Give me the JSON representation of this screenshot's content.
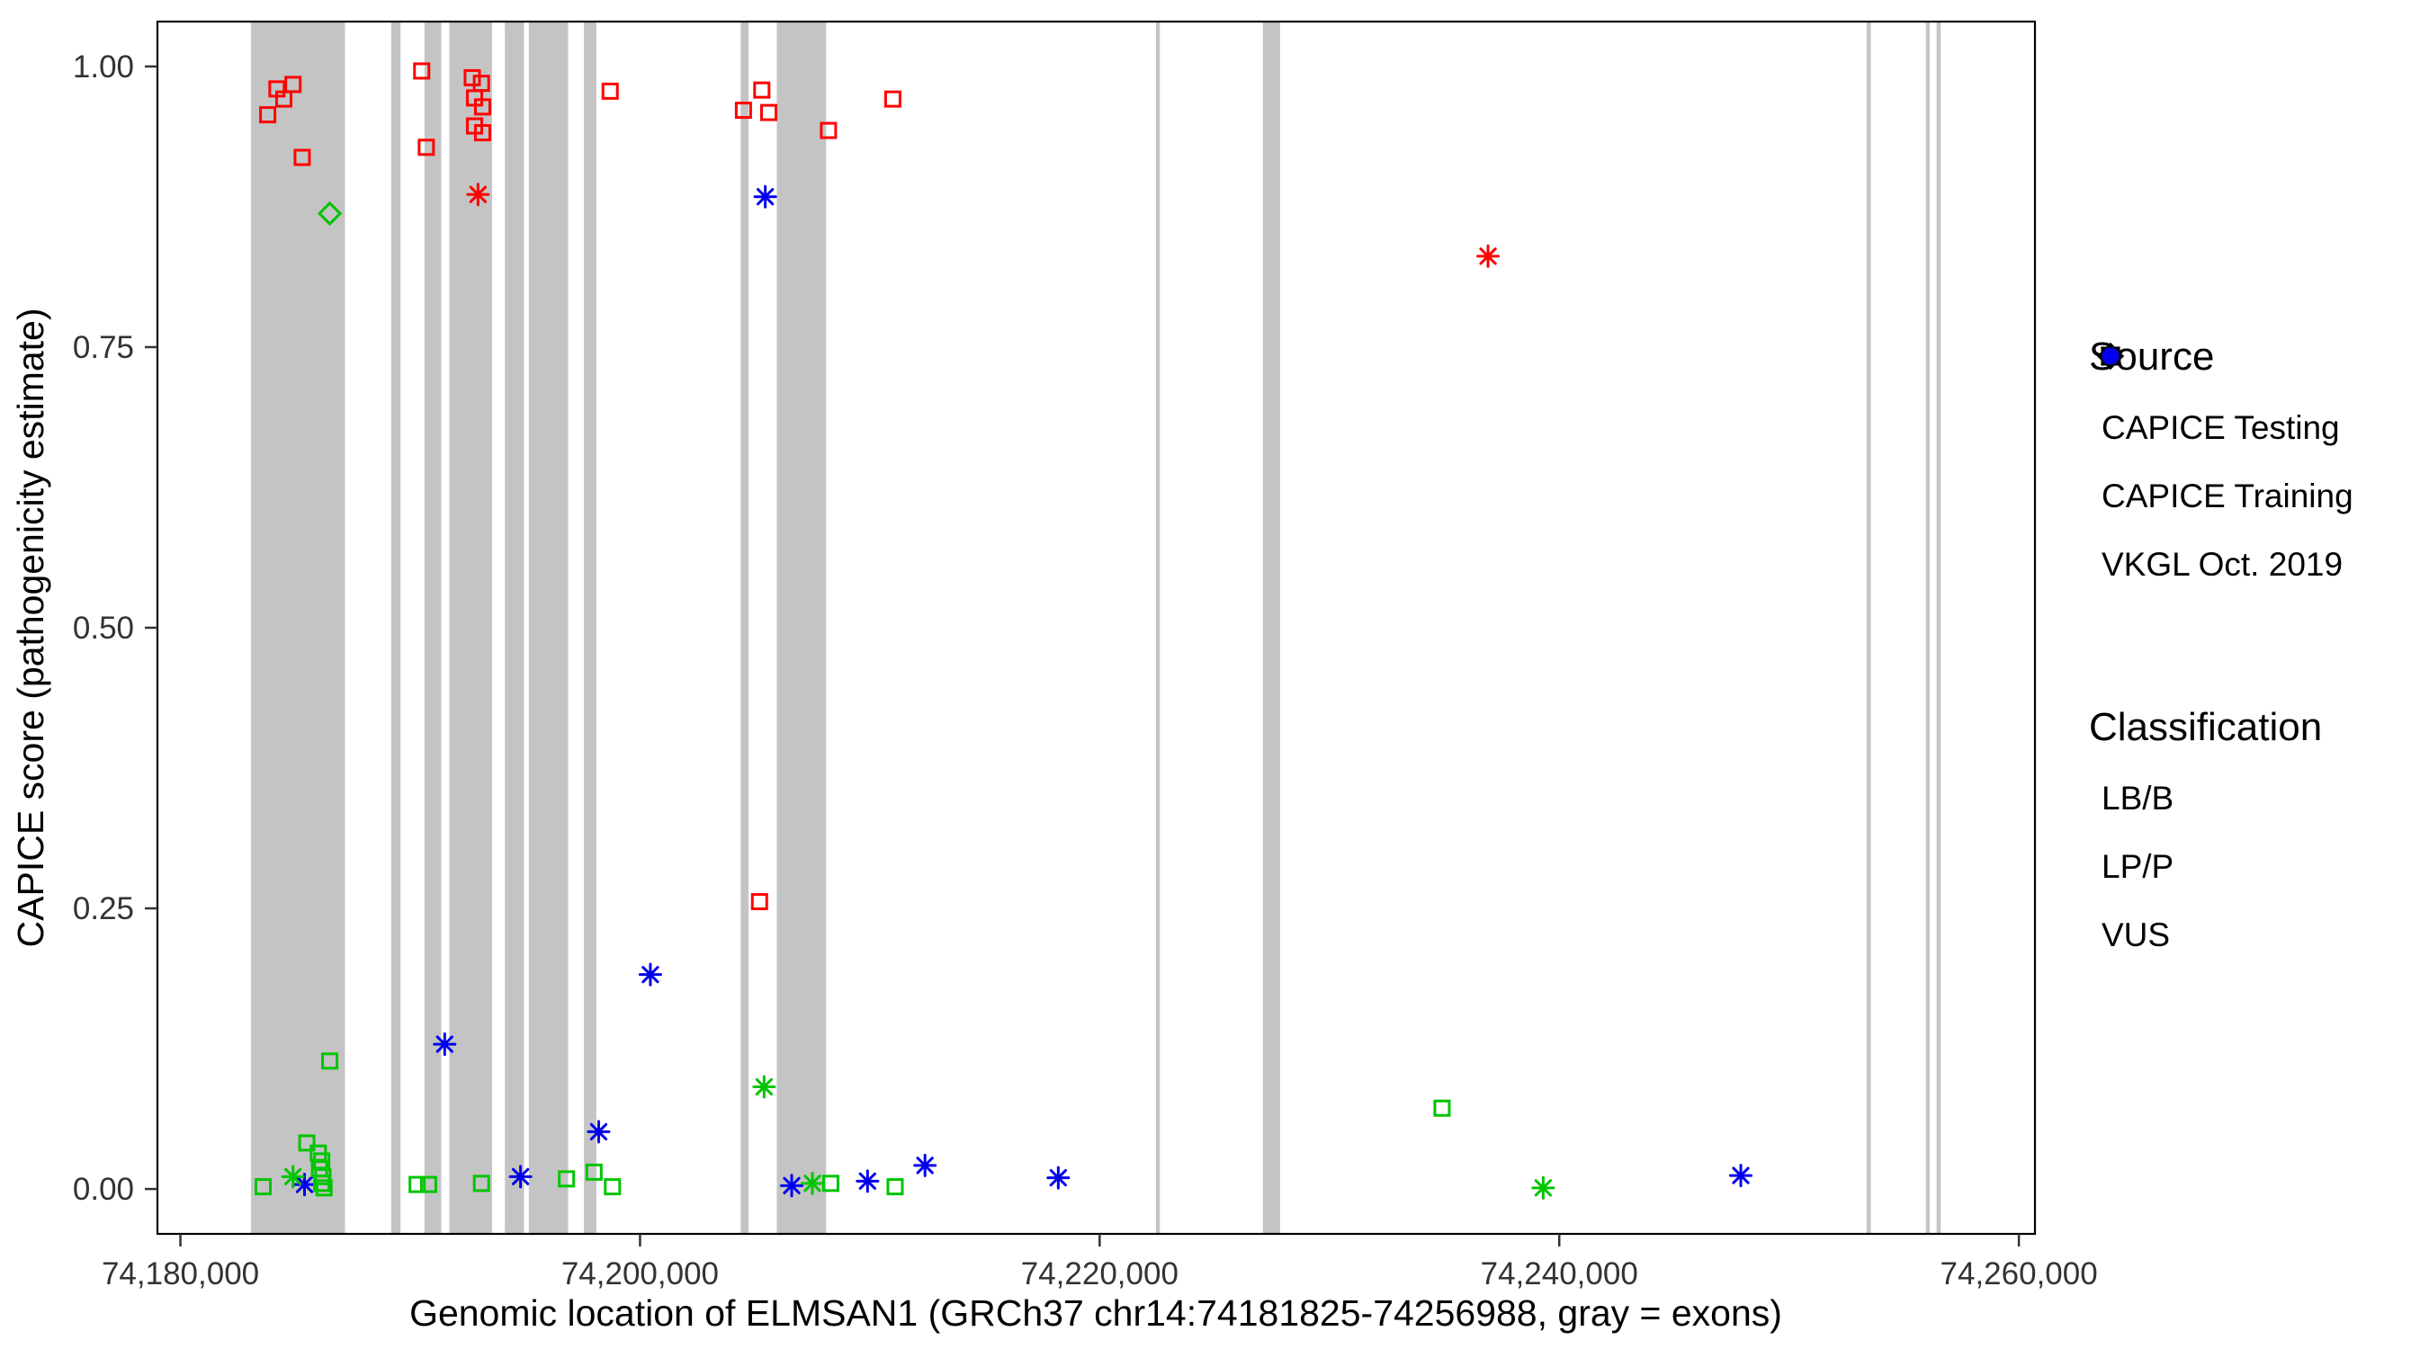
{
  "legend": {
    "source_title": "Source",
    "source_items": [
      {
        "label": "CAPICE Testing",
        "shape": "diamond"
      },
      {
        "label": "CAPICE Training",
        "shape": "square"
      },
      {
        "label": "VKGL Oct. 2019",
        "shape": "asterisk"
      }
    ],
    "classification_title": "Classification",
    "classification_items": [
      {
        "label": "LB/B",
        "color": "#00C500"
      },
      {
        "label": "LP/P",
        "color": "#FF0000"
      },
      {
        "label": "VUS",
        "color": "#0000EE"
      }
    ]
  },
  "chart_data": {
    "type": "scatter",
    "title": "",
    "xlabel": "Genomic location of ELMSAN1 (GRCh37 chr14:74181825-74256988, gray = exons)",
    "ylabel": "CAPICE score (pathogenicity estimate)",
    "xlim": [
      74179000,
      74260700
    ],
    "ylim": [
      -0.04,
      1.04
    ],
    "x_ticks": [
      74180000,
      74200000,
      74220000,
      74240000,
      74260000
    ],
    "x_tick_labels": [
      "74,180,000",
      "74,200,000",
      "74,220,000",
      "74,240,000",
      "74,260,000"
    ],
    "y_ticks": [
      0,
      0.25,
      0.5,
      0.75,
      1
    ],
    "y_tick_labels": [
      "0.00",
      "0.25",
      "0.50",
      "0.75",
      "1.00"
    ],
    "grid": false,
    "legend_position": "right",
    "colors": {
      "LB/B": "#00C500",
      "LP/P": "#FF0000",
      "VUS": "#0000EE",
      "exon": "#C4C4C4",
      "tick_text": "#333333",
      "axis_text": "#000000"
    },
    "shape_by_source": {
      "CAPICE Testing": "diamond",
      "CAPICE Training": "square",
      "VKGL Oct. 2019": "asterisk"
    },
    "exons": [
      [
        74183070,
        74187160
      ],
      [
        74189170,
        74189580
      ],
      [
        74190620,
        74191350
      ],
      [
        74191700,
        74193560
      ],
      [
        74194120,
        74194950
      ],
      [
        74195160,
        74196870
      ],
      [
        74197560,
        74198100
      ],
      [
        74204380,
        74204720
      ],
      [
        74205950,
        74208100
      ],
      [
        74222450,
        74222620
      ],
      [
        74227100,
        74227850
      ],
      [
        74253380,
        74253560
      ],
      [
        74255950,
        74256120
      ],
      [
        74256420,
        74256600
      ]
    ],
    "points": [
      {
        "x": 74183800,
        "y": 0.957,
        "source": "CAPICE Training",
        "classification": "LP/P"
      },
      {
        "x": 74184200,
        "y": 0.98,
        "source": "CAPICE Training",
        "classification": "LP/P"
      },
      {
        "x": 74184900,
        "y": 0.984,
        "source": "CAPICE Training",
        "classification": "LP/P"
      },
      {
        "x": 74184500,
        "y": 0.971,
        "source": "CAPICE Training",
        "classification": "LP/P"
      },
      {
        "x": 74185300,
        "y": 0.919,
        "source": "CAPICE Training",
        "classification": "LP/P"
      },
      {
        "x": 74190500,
        "y": 0.996,
        "source": "CAPICE Training",
        "classification": "LP/P"
      },
      {
        "x": 74190700,
        "y": 0.928,
        "source": "CAPICE Training",
        "classification": "LP/P"
      },
      {
        "x": 74192700,
        "y": 0.99,
        "source": "CAPICE Training",
        "classification": "LP/P"
      },
      {
        "x": 74193100,
        "y": 0.985,
        "source": "CAPICE Training",
        "classification": "LP/P"
      },
      {
        "x": 74192800,
        "y": 0.972,
        "source": "CAPICE Training",
        "classification": "LP/P"
      },
      {
        "x": 74193150,
        "y": 0.964,
        "source": "CAPICE Training",
        "classification": "LP/P"
      },
      {
        "x": 74192800,
        "y": 0.947,
        "source": "CAPICE Training",
        "classification": "LP/P"
      },
      {
        "x": 74193150,
        "y": 0.941,
        "source": "CAPICE Training",
        "classification": "LP/P"
      },
      {
        "x": 74198700,
        "y": 0.978,
        "source": "CAPICE Training",
        "classification": "LP/P"
      },
      {
        "x": 74204500,
        "y": 0.961,
        "source": "CAPICE Training",
        "classification": "LP/P"
      },
      {
        "x": 74205300,
        "y": 0.979,
        "source": "CAPICE Training",
        "classification": "LP/P"
      },
      {
        "x": 74205600,
        "y": 0.959,
        "source": "CAPICE Training",
        "classification": "LP/P"
      },
      {
        "x": 74208200,
        "y": 0.943,
        "source": "CAPICE Training",
        "classification": "LP/P"
      },
      {
        "x": 74211000,
        "y": 0.971,
        "source": "CAPICE Training",
        "classification": "LP/P"
      },
      {
        "x": 74205200,
        "y": 0.256,
        "source": "CAPICE Training",
        "classification": "LP/P"
      },
      {
        "x": 74192950,
        "y": 0.886,
        "source": "VKGL Oct. 2019",
        "classification": "LP/P"
      },
      {
        "x": 74236900,
        "y": 0.831,
        "source": "VKGL Oct. 2019",
        "classification": "LP/P"
      },
      {
        "x": 74186500,
        "y": 0.869,
        "source": "CAPICE Testing",
        "classification": "LB/B"
      },
      {
        "x": 74205450,
        "y": 0.884,
        "source": "VKGL Oct. 2019",
        "classification": "VUS"
      },
      {
        "x": 74200450,
        "y": 0.191,
        "source": "VKGL Oct. 2019",
        "classification": "VUS"
      },
      {
        "x": 74191500,
        "y": 0.129,
        "source": "VKGL Oct. 2019",
        "classification": "VUS"
      },
      {
        "x": 74198200,
        "y": 0.051,
        "source": "VKGL Oct. 2019",
        "classification": "VUS"
      },
      {
        "x": 74212400,
        "y": 0.021,
        "source": "VKGL Oct. 2019",
        "classification": "VUS"
      },
      {
        "x": 74218200,
        "y": 0.01,
        "source": "VKGL Oct. 2019",
        "classification": "VUS"
      },
      {
        "x": 74247900,
        "y": 0.012,
        "source": "VKGL Oct. 2019",
        "classification": "VUS"
      },
      {
        "x": 74194800,
        "y": 0.011,
        "source": "VKGL Oct. 2019",
        "classification": "VUS"
      },
      {
        "x": 74206600,
        "y": 0.003,
        "source": "VKGL Oct. 2019",
        "classification": "VUS"
      },
      {
        "x": 74209900,
        "y": 0.007,
        "source": "VKGL Oct. 2019",
        "classification": "VUS"
      },
      {
        "x": 74185400,
        "y": 0.004,
        "source": "VKGL Oct. 2019",
        "classification": "VUS"
      },
      {
        "x": 74186500,
        "y": 0.114,
        "source": "CAPICE Training",
        "classification": "LB/B"
      },
      {
        "x": 74185500,
        "y": 0.041,
        "source": "CAPICE Training",
        "classification": "LB/B"
      },
      {
        "x": 74186000,
        "y": 0.032,
        "source": "CAPICE Training",
        "classification": "LB/B"
      },
      {
        "x": 74186150,
        "y": 0.025,
        "source": "CAPICE Training",
        "classification": "LB/B"
      },
      {
        "x": 74186050,
        "y": 0.018,
        "source": "CAPICE Training",
        "classification": "LB/B"
      },
      {
        "x": 74186200,
        "y": 0.011,
        "source": "CAPICE Training",
        "classification": "LB/B"
      },
      {
        "x": 74186150,
        "y": 0.005,
        "source": "CAPICE Training",
        "classification": "LB/B"
      },
      {
        "x": 74186250,
        "y": 0.001,
        "source": "CAPICE Training",
        "classification": "LB/B"
      },
      {
        "x": 74183600,
        "y": 0.002,
        "source": "CAPICE Training",
        "classification": "LB/B"
      },
      {
        "x": 74190300,
        "y": 0.004,
        "source": "CAPICE Training",
        "classification": "LB/B"
      },
      {
        "x": 74190800,
        "y": 0.004,
        "source": "CAPICE Training",
        "classification": "LB/B"
      },
      {
        "x": 74193100,
        "y": 0.005,
        "source": "CAPICE Training",
        "classification": "LB/B"
      },
      {
        "x": 74196800,
        "y": 0.009,
        "source": "CAPICE Training",
        "classification": "LB/B"
      },
      {
        "x": 74198000,
        "y": 0.015,
        "source": "CAPICE Training",
        "classification": "LB/B"
      },
      {
        "x": 74198800,
        "y": 0.002,
        "source": "CAPICE Training",
        "classification": "LB/B"
      },
      {
        "x": 74208300,
        "y": 0.005,
        "source": "CAPICE Training",
        "classification": "LB/B"
      },
      {
        "x": 74211100,
        "y": 0.002,
        "source": "CAPICE Training",
        "classification": "LB/B"
      },
      {
        "x": 74234900,
        "y": 0.072,
        "source": "CAPICE Training",
        "classification": "LB/B"
      },
      {
        "x": 74184900,
        "y": 0.011,
        "source": "VKGL Oct. 2019",
        "classification": "LB/B"
      },
      {
        "x": 74205400,
        "y": 0.091,
        "source": "VKGL Oct. 2019",
        "classification": "LB/B"
      },
      {
        "x": 74207500,
        "y": 0.005,
        "source": "VKGL Oct. 2019",
        "classification": "LB/B"
      },
      {
        "x": 74239300,
        "y": 0.001,
        "source": "VKGL Oct. 2019",
        "classification": "LB/B"
      }
    ]
  }
}
